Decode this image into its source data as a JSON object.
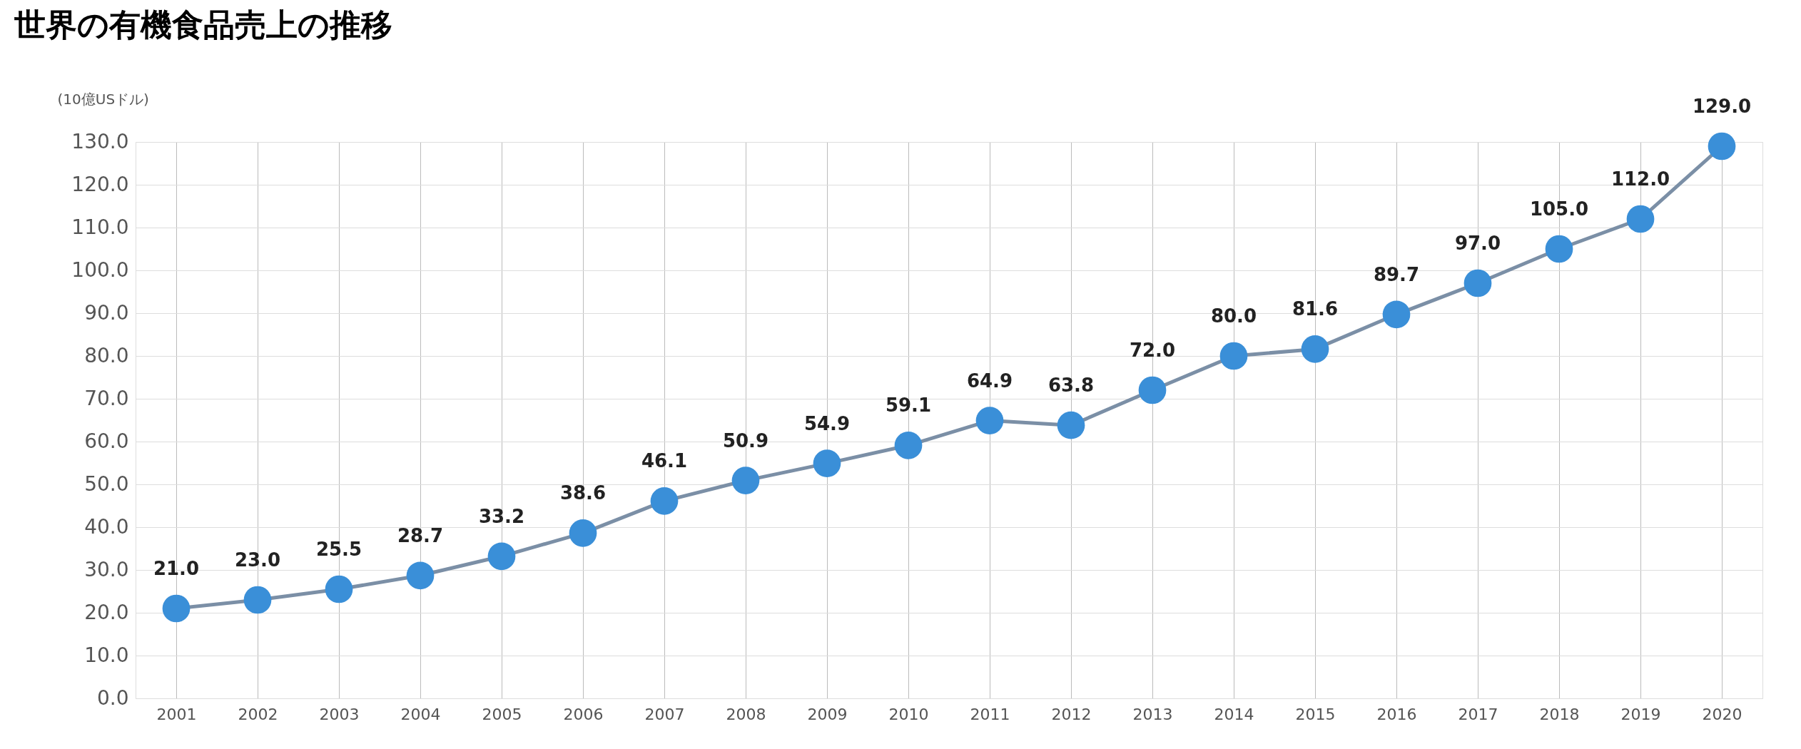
{
  "chart_data": {
    "type": "line",
    "title": "世界の有機食品売上の推移",
    "ylabel": "(10億USドル)",
    "categories": [
      "2001",
      "2002",
      "2003",
      "2004",
      "2005",
      "2006",
      "2007",
      "2008",
      "2009",
      "2010",
      "2011",
      "2012",
      "2013",
      "2014",
      "2015",
      "2016",
      "2017",
      "2018",
      "2019",
      "2020"
    ],
    "series": [
      {
        "color": "#3a8fd8",
        "values": [
          21.0,
          23.0,
          25.5,
          28.7,
          33.2,
          38.6,
          46.1,
          50.9,
          54.9,
          59.1,
          64.9,
          63.8,
          72.0,
          80.0,
          81.6,
          89.7,
          97.0,
          105.0,
          112.0,
          129.0
        ],
        "value_labels": [
          "21.0",
          "23.0",
          "25.5",
          "28.7",
          "33.2",
          "38.6",
          "46.1",
          "50.9",
          "54.9",
          "59.1",
          "64.9",
          "63.8",
          "72.0",
          "80.0",
          "81.6",
          "89.7",
          "97.0",
          "105.0",
          "112.0",
          "129.0"
        ]
      }
    ],
    "ylim": [
      0,
      130
    ],
    "yticks": [
      {
        "value": 0,
        "label": "0.0"
      },
      {
        "value": 10,
        "label": "10.0"
      },
      {
        "value": 20,
        "label": "20.0"
      },
      {
        "value": 30,
        "label": "30.0"
      },
      {
        "value": 40,
        "label": "40.0"
      },
      {
        "value": 50,
        "label": "50.0"
      },
      {
        "value": 60,
        "label": "60.0"
      },
      {
        "value": 70,
        "label": "70.0"
      },
      {
        "value": 80,
        "label": "80.0"
      },
      {
        "value": 90,
        "label": "90.0"
      },
      {
        "value": 100,
        "label": "100.0"
      },
      {
        "value": 110,
        "label": "110.0"
      },
      {
        "value": 120,
        "label": "120.0"
      },
      {
        "value": 130,
        "label": "130.0"
      }
    ],
    "grid": true,
    "marker": "circle",
    "line_style": "solid"
  }
}
